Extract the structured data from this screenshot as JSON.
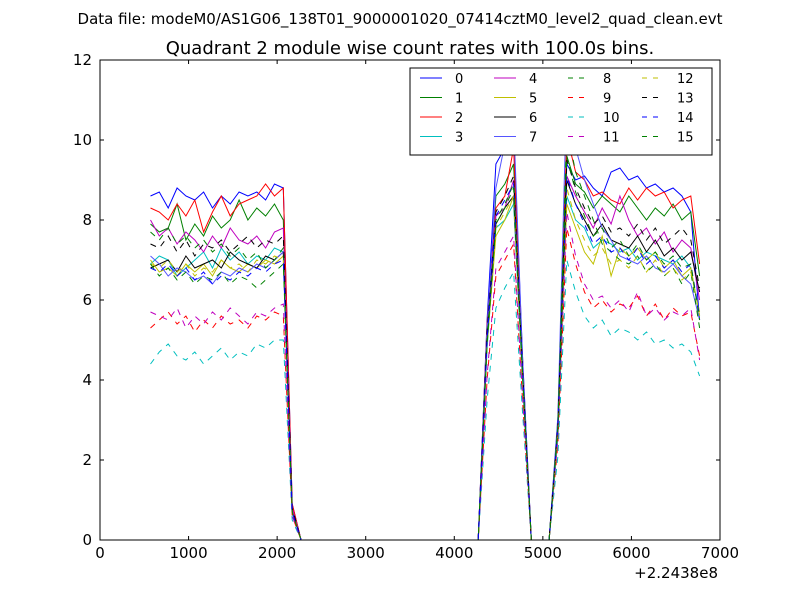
{
  "figure": {
    "suptitle": "Data file: modeM0/AS1G06_138T01_9000001020_07414cztM0_level2_quad_clean.evt"
  },
  "chart_data": {
    "type": "line",
    "title": "Quadrant 2 module wise count rates with 100.0s bins.",
    "xlabel": "",
    "ylabel": "",
    "xlim": [
      0,
      7000
    ],
    "ylim": [
      0,
      12
    ],
    "xticks": [
      0,
      1000,
      2000,
      3000,
      4000,
      5000,
      6000,
      7000
    ],
    "yticks": [
      0,
      2,
      4,
      6,
      8,
      10,
      12
    ],
    "x_offset_label": "+2.2438e8",
    "grid": false,
    "legend_position": "top-right",
    "legend_columns": 4,
    "x": [
      570,
      670,
      770,
      870,
      970,
      1070,
      1170,
      1270,
      1370,
      1470,
      1570,
      1670,
      1770,
      1870,
      1970,
      2070,
      2170,
      2270,
      2370,
      2470,
      2570,
      2670,
      2770,
      2870,
      2970,
      3070,
      3170,
      3270,
      3370,
      3470,
      3570,
      3670,
      3770,
      3870,
      3970,
      4070,
      4170,
      4270,
      4370,
      4470,
      4570,
      4670,
      4770,
      4870,
      4970,
      5070,
      5170,
      5270,
      5370,
      5470,
      5570,
      5670,
      5770,
      5870,
      5970,
      6070,
      6170,
      6270,
      6370,
      6470,
      6570,
      6670,
      6770
    ],
    "series": [
      {
        "name": "0",
        "color": "#0000ff",
        "style": "solid",
        "values": [
          8.6,
          8.7,
          8.3,
          8.8,
          8.6,
          8.5,
          8.7,
          8.3,
          8.6,
          8.4,
          8.7,
          8.6,
          8.7,
          8.5,
          8.9,
          8.8,
          0.9,
          0.0,
          0.0,
          0.0,
          0.0,
          0.0,
          0.0,
          0.0,
          0.0,
          0.0,
          0.0,
          0.0,
          0.0,
          0.0,
          0.0,
          0.0,
          0.0,
          0.0,
          0.0,
          0.0,
          0.0,
          0.0,
          5.5,
          9.4,
          9.8,
          10.2,
          4.6,
          0.0,
          0.0,
          0.0,
          3.0,
          9.4,
          9.0,
          9.1,
          8.8,
          8.6,
          9.2,
          9.3,
          9.0,
          9.1,
          8.8,
          8.9,
          8.7,
          8.8,
          8.6,
          8.2,
          5.5
        ]
      },
      {
        "name": "1",
        "color": "#008000",
        "style": "solid",
        "values": [
          7.9,
          7.7,
          7.8,
          8.4,
          7.5,
          7.9,
          7.6,
          8.1,
          7.8,
          8.0,
          8.5,
          8.0,
          8.3,
          8.1,
          8.4,
          8.0,
          0.8,
          0.0,
          0.0,
          0.0,
          0.0,
          0.0,
          0.0,
          0.0,
          0.0,
          0.0,
          0.0,
          0.0,
          0.0,
          0.0,
          0.0,
          0.0,
          0.0,
          0.0,
          0.0,
          0.0,
          0.0,
          0.0,
          5.2,
          8.6,
          8.9,
          9.4,
          4.3,
          0.0,
          0.0,
          0.0,
          2.9,
          9.6,
          8.9,
          8.7,
          8.3,
          8.6,
          8.4,
          8.2,
          8.6,
          8.3,
          8.0,
          8.3,
          8.1,
          8.4,
          8.0,
          8.2,
          6.6
        ]
      },
      {
        "name": "2",
        "color": "#ff0000",
        "style": "solid",
        "values": [
          8.3,
          8.2,
          8.0,
          8.4,
          8.1,
          8.5,
          7.7,
          8.2,
          8.6,
          8.1,
          8.4,
          8.5,
          8.6,
          8.9,
          8.6,
          8.8,
          0.9,
          0.0,
          0.0,
          0.0,
          0.0,
          0.0,
          0.0,
          0.0,
          0.0,
          0.0,
          0.0,
          0.0,
          0.0,
          0.0,
          0.0,
          0.0,
          0.0,
          0.0,
          0.0,
          0.0,
          0.0,
          0.0,
          5.4,
          8.3,
          8.6,
          9.8,
          4.5,
          0.0,
          0.0,
          0.0,
          3.0,
          10.1,
          9.2,
          9.0,
          8.6,
          8.7,
          8.5,
          8.4,
          8.8,
          8.5,
          8.8,
          8.6,
          8.7,
          8.3,
          8.5,
          8.6,
          6.9
        ]
      },
      {
        "name": "3",
        "color": "#00bfbf",
        "style": "solid",
        "values": [
          6.9,
          7.1,
          7.0,
          6.6,
          6.8,
          7.0,
          7.2,
          6.8,
          7.3,
          7.0,
          7.2,
          6.9,
          7.1,
          7.0,
          7.3,
          7.2,
          0.7,
          0.0,
          0.0,
          0.0,
          0.0,
          0.0,
          0.0,
          0.0,
          0.0,
          0.0,
          0.0,
          0.0,
          0.0,
          0.0,
          0.0,
          0.0,
          0.0,
          0.0,
          0.0,
          0.0,
          0.0,
          0.0,
          4.8,
          7.8,
          8.0,
          8.4,
          4.0,
          0.0,
          0.0,
          0.0,
          2.6,
          8.6,
          8.0,
          7.8,
          7.3,
          7.5,
          7.4,
          7.2,
          7.3,
          7.0,
          7.2,
          7.1,
          7.0,
          6.9,
          7.1,
          6.8,
          5.6
        ]
      },
      {
        "name": "4",
        "color": "#bf00bf",
        "style": "solid",
        "values": [
          8.0,
          7.6,
          7.8,
          7.4,
          7.7,
          7.5,
          7.2,
          7.6,
          7.3,
          7.8,
          7.5,
          7.4,
          7.6,
          7.3,
          7.7,
          7.8,
          0.8,
          0.0,
          0.0,
          0.0,
          0.0,
          0.0,
          0.0,
          0.0,
          0.0,
          0.0,
          0.0,
          0.0,
          0.0,
          0.0,
          0.0,
          0.0,
          0.0,
          0.0,
          0.0,
          0.0,
          0.0,
          0.0,
          5.1,
          8.1,
          8.3,
          9.0,
          4.3,
          0.0,
          0.0,
          0.0,
          2.8,
          9.1,
          8.6,
          8.2,
          7.8,
          8.3,
          7.9,
          8.6,
          8.0,
          7.6,
          7.8,
          7.4,
          7.7,
          7.2,
          7.5,
          7.3,
          6.0
        ]
      },
      {
        "name": "5",
        "color": "#bfbf00",
        "style": "solid",
        "values": [
          7.0,
          6.7,
          6.8,
          6.6,
          6.9,
          6.7,
          6.9,
          6.6,
          7.0,
          6.8,
          6.7,
          6.9,
          6.8,
          7.0,
          6.9,
          7.1,
          0.7,
          0.0,
          0.0,
          0.0,
          0.0,
          0.0,
          0.0,
          0.0,
          0.0,
          0.0,
          0.0,
          0.0,
          0.0,
          0.0,
          0.0,
          0.0,
          0.0,
          0.0,
          0.0,
          0.0,
          0.0,
          0.0,
          4.9,
          7.6,
          8.0,
          8.6,
          4.1,
          0.0,
          0.0,
          0.0,
          2.7,
          8.4,
          7.8,
          7.2,
          6.9,
          7.6,
          6.6,
          7.3,
          7.1,
          7.3,
          7.0,
          7.2,
          6.8,
          7.0,
          6.6,
          6.8,
          5.6
        ]
      },
      {
        "name": "6",
        "color": "#000000",
        "style": "solid",
        "values": [
          6.8,
          6.9,
          7.0,
          6.7,
          7.1,
          6.8,
          6.9,
          7.0,
          6.8,
          7.2,
          7.0,
          6.9,
          6.8,
          7.1,
          7.0,
          7.2,
          0.7,
          0.0,
          0.0,
          0.0,
          0.0,
          0.0,
          0.0,
          0.0,
          0.0,
          0.0,
          0.0,
          0.0,
          0.0,
          0.0,
          0.0,
          0.0,
          0.0,
          0.0,
          0.0,
          0.0,
          0.0,
          0.0,
          5.0,
          7.9,
          8.3,
          8.6,
          4.2,
          0.0,
          0.0,
          0.0,
          2.8,
          9.0,
          8.4,
          8.0,
          7.6,
          7.9,
          7.5,
          7.4,
          7.3,
          7.6,
          7.2,
          7.5,
          7.1,
          7.3,
          7.0,
          7.2,
          6.2
        ]
      },
      {
        "name": "7",
        "color": "#5555ff",
        "style": "solid",
        "values": [
          7.1,
          6.9,
          6.6,
          6.8,
          6.7,
          6.5,
          6.6,
          6.4,
          6.7,
          6.6,
          6.8,
          6.7,
          6.9,
          6.8,
          7.0,
          7.2,
          0.7,
          0.0,
          0.0,
          0.0,
          0.0,
          0.0,
          0.0,
          0.0,
          0.0,
          0.0,
          0.0,
          0.0,
          0.0,
          0.0,
          0.0,
          0.0,
          0.0,
          0.0,
          0.0,
          0.0,
          0.0,
          0.0,
          5.3,
          8.8,
          9.9,
          10.5,
          4.6,
          0.0,
          0.0,
          0.0,
          3.1,
          11.3,
          9.8,
          9.0,
          8.4,
          7.8,
          7.5,
          7.1,
          7.0,
          6.9,
          7.1,
          6.8,
          6.7,
          6.9,
          6.6,
          6.4,
          5.5
        ]
      },
      {
        "name": "8",
        "color": "#008000",
        "style": "dashed",
        "values": [
          7.7,
          7.5,
          7.8,
          7.4,
          7.6,
          7.3,
          7.5,
          7.2,
          7.4,
          7.1,
          7.3,
          7.0,
          7.2,
          6.8,
          7.0,
          7.3,
          0.7,
          0.0,
          0.0,
          0.0,
          0.0,
          0.0,
          0.0,
          0.0,
          0.0,
          0.0,
          0.0,
          0.0,
          0.0,
          0.0,
          0.0,
          0.0,
          0.0,
          0.0,
          0.0,
          0.0,
          0.0,
          0.0,
          5.1,
          8.0,
          8.4,
          8.9,
          4.2,
          0.0,
          0.0,
          0.0,
          2.9,
          10.3,
          9.2,
          8.6,
          8.0,
          7.4,
          7.2,
          7.0,
          6.9,
          7.1,
          6.7,
          6.9,
          6.6,
          6.8,
          6.4,
          6.7,
          5.3
        ]
      },
      {
        "name": "9",
        "color": "#ff0000",
        "style": "dashed",
        "values": [
          5.3,
          5.5,
          5.7,
          5.4,
          5.6,
          5.2,
          5.5,
          5.3,
          5.6,
          5.4,
          5.5,
          5.3,
          5.6,
          5.5,
          5.7,
          5.6,
          0.6,
          0.0,
          0.0,
          0.0,
          0.0,
          0.0,
          0.0,
          0.0,
          0.0,
          0.0,
          0.0,
          0.0,
          0.0,
          0.0,
          0.0,
          0.0,
          0.0,
          0.0,
          0.0,
          0.0,
          0.0,
          0.0,
          4.0,
          6.6,
          7.0,
          7.4,
          3.5,
          0.0,
          0.0,
          0.0,
          2.4,
          7.8,
          6.9,
          6.2,
          5.8,
          6.0,
          5.7,
          5.9,
          5.8,
          6.1,
          5.6,
          5.9,
          5.5,
          5.8,
          5.6,
          5.7,
          4.6
        ]
      },
      {
        "name": "10",
        "color": "#00bfbf",
        "style": "dashed",
        "values": [
          4.4,
          4.7,
          4.9,
          4.6,
          4.5,
          4.7,
          4.4,
          4.6,
          4.8,
          4.5,
          4.7,
          4.6,
          4.9,
          4.8,
          5.0,
          5.0,
          0.5,
          0.0,
          0.0,
          0.0,
          0.0,
          0.0,
          0.0,
          0.0,
          0.0,
          0.0,
          0.0,
          0.0,
          0.0,
          0.0,
          0.0,
          0.0,
          0.0,
          0.0,
          0.0,
          0.0,
          0.0,
          0.0,
          3.5,
          5.8,
          6.3,
          6.7,
          3.2,
          0.0,
          0.0,
          0.0,
          2.1,
          7.0,
          6.2,
          5.6,
          5.3,
          5.5,
          5.1,
          5.3,
          5.2,
          5.0,
          5.2,
          4.9,
          5.0,
          4.8,
          4.9,
          4.7,
          4.1
        ]
      },
      {
        "name": "11",
        "color": "#bf00bf",
        "style": "dashed",
        "values": [
          5.7,
          5.6,
          5.5,
          5.8,
          5.3,
          5.6,
          5.4,
          5.7,
          5.5,
          5.8,
          5.6,
          5.4,
          5.7,
          5.6,
          5.8,
          5.9,
          0.6,
          0.0,
          0.0,
          0.0,
          0.0,
          0.0,
          0.0,
          0.0,
          0.0,
          0.0,
          0.0,
          0.0,
          0.0,
          0.0,
          0.0,
          0.0,
          0.0,
          0.0,
          0.0,
          0.0,
          0.0,
          0.0,
          4.1,
          6.8,
          7.2,
          7.6,
          3.6,
          0.0,
          0.0,
          0.0,
          2.5,
          8.2,
          7.1,
          6.4,
          6.0,
          6.1,
          5.8,
          6.0,
          5.7,
          6.2,
          5.6,
          5.8,
          5.5,
          5.7,
          5.6,
          5.8,
          4.5
        ]
      },
      {
        "name": "12",
        "color": "#bfbf00",
        "style": "dashed",
        "values": [
          6.9,
          6.8,
          7.0,
          6.7,
          6.9,
          6.6,
          6.8,
          6.7,
          7.0,
          6.8,
          6.9,
          6.7,
          7.0,
          6.9,
          7.1,
          7.0,
          0.7,
          0.0,
          0.0,
          0.0,
          0.0,
          0.0,
          0.0,
          0.0,
          0.0,
          0.0,
          0.0,
          0.0,
          0.0,
          0.0,
          0.0,
          0.0,
          0.0,
          0.0,
          0.0,
          0.0,
          0.0,
          0.0,
          4.9,
          7.8,
          8.2,
          8.6,
          4.1,
          0.0,
          0.0,
          0.0,
          2.7,
          8.8,
          8.0,
          7.5,
          7.1,
          7.3,
          6.9,
          7.0,
          6.8,
          7.1,
          6.7,
          7.0,
          6.6,
          6.8,
          6.5,
          6.7,
          5.7
        ]
      },
      {
        "name": "13",
        "color": "#000000",
        "style": "dashed",
        "values": [
          7.4,
          7.3,
          7.6,
          7.2,
          7.5,
          7.1,
          7.4,
          7.3,
          7.5,
          7.2,
          7.4,
          7.6,
          7.3,
          7.5,
          7.4,
          7.6,
          0.8,
          0.0,
          0.0,
          0.0,
          0.0,
          0.0,
          0.0,
          0.0,
          0.0,
          0.0,
          0.0,
          0.0,
          0.0,
          0.0,
          0.0,
          0.0,
          0.0,
          0.0,
          0.0,
          0.0,
          0.0,
          0.0,
          5.2,
          8.2,
          8.6,
          9.1,
          4.3,
          0.0,
          0.0,
          0.0,
          2.9,
          9.5,
          8.8,
          8.3,
          7.9,
          8.1,
          7.7,
          7.8,
          7.6,
          7.9,
          7.5,
          7.8,
          7.4,
          7.6,
          7.8,
          7.5,
          6.3
        ]
      },
      {
        "name": "14",
        "color": "#0000ff",
        "style": "dashed",
        "values": [
          6.8,
          6.7,
          6.9,
          6.6,
          6.8,
          6.5,
          6.7,
          6.4,
          6.6,
          6.5,
          6.7,
          6.6,
          6.8,
          6.7,
          6.9,
          7.0,
          0.7,
          0.0,
          0.0,
          0.0,
          0.0,
          0.0,
          0.0,
          0.0,
          0.0,
          0.0,
          0.0,
          0.0,
          0.0,
          0.0,
          0.0,
          0.0,
          0.0,
          0.0,
          0.0,
          0.0,
          0.0,
          0.0,
          5.0,
          8.1,
          8.5,
          8.9,
          4.2,
          0.0,
          0.0,
          0.0,
          2.8,
          9.1,
          8.4,
          7.9,
          7.4,
          7.6,
          7.2,
          7.3,
          7.0,
          7.3,
          6.9,
          7.1,
          6.8,
          7.0,
          6.7,
          6.9,
          5.6
        ]
      },
      {
        "name": "15",
        "color": "#008000",
        "style": "dashed",
        "values": [
          6.9,
          6.6,
          6.8,
          6.5,
          6.7,
          6.4,
          6.6,
          6.5,
          6.7,
          6.4,
          6.6,
          6.5,
          6.3,
          6.5,
          6.7,
          6.9,
          0.7,
          0.0,
          0.0,
          0.0,
          0.0,
          0.0,
          0.0,
          0.0,
          0.0,
          0.0,
          0.0,
          0.0,
          0.0,
          0.0,
          0.0,
          0.0,
          0.0,
          0.0,
          0.0,
          0.0,
          0.0,
          0.0,
          4.9,
          7.9,
          8.3,
          8.8,
          4.2,
          0.0,
          0.0,
          0.0,
          2.8,
          9.6,
          8.7,
          8.1,
          7.6,
          7.8,
          7.3,
          7.5,
          7.1,
          7.4,
          7.0,
          7.2,
          6.9,
          7.1,
          6.8,
          6.9,
          5.5
        ]
      }
    ]
  }
}
